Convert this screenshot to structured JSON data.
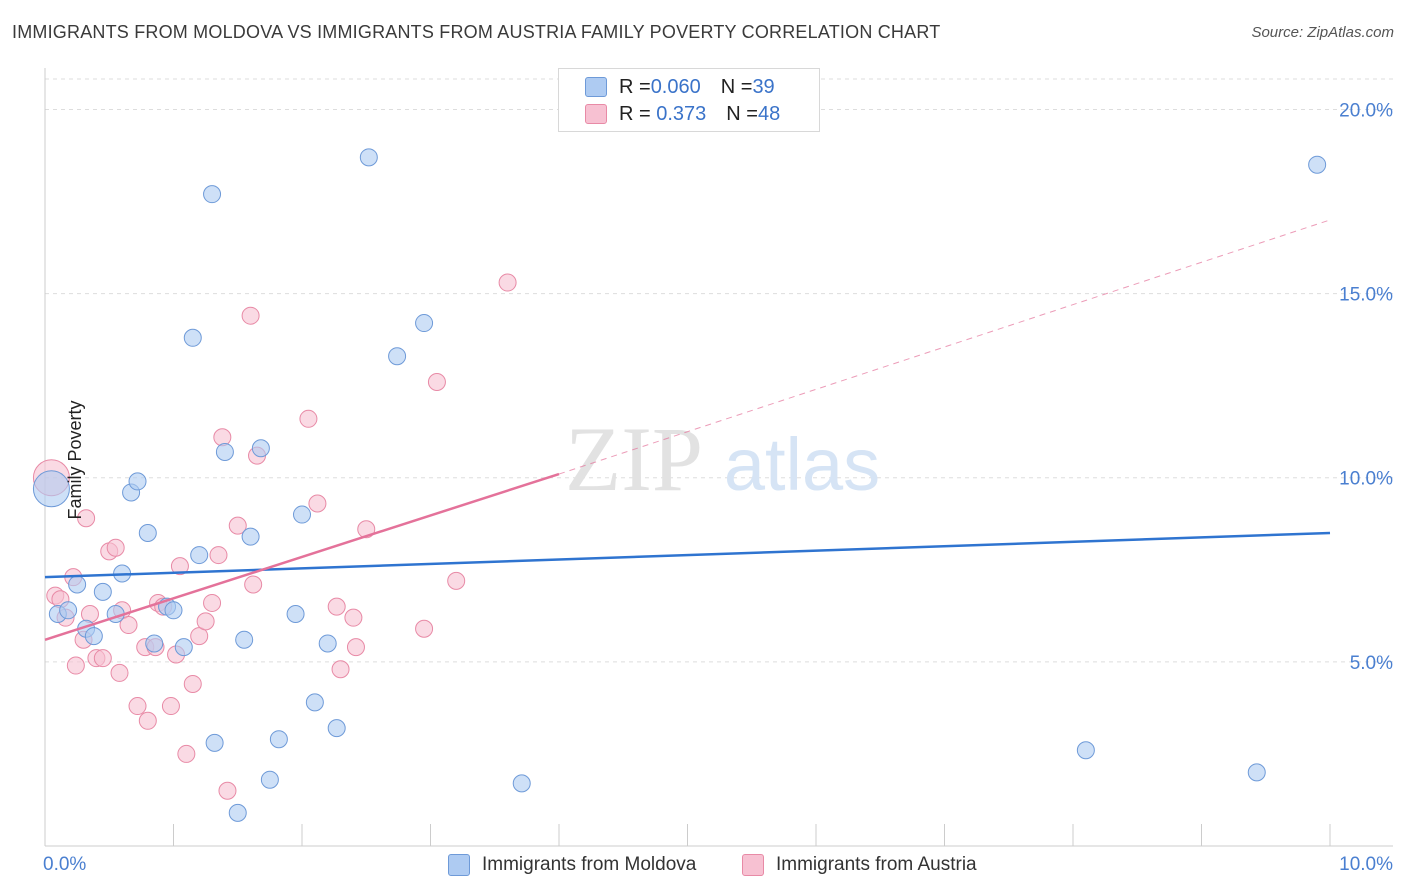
{
  "title": "IMMIGRANTS FROM MOLDOVA VS IMMIGRANTS FROM AUSTRIA FAMILY POVERTY CORRELATION CHART",
  "source": "Source: ZipAtlas.com",
  "watermark": {
    "zip": "ZIP",
    "atlas": "atlas"
  },
  "legend": {
    "rows": [
      {
        "r_label": "R = ",
        "r_value": "0.060",
        "n_label": "N = ",
        "n_value": "39"
      },
      {
        "r_label": "R = ",
        "r_value": " 0.373",
        "n_label": "N = ",
        "n_value": "48"
      }
    ]
  },
  "colors": {
    "moldova_fill": "#aecbf2",
    "moldova_stroke": "#6e9ad8",
    "moldova_line": "#2f74d0",
    "austria_fill": "#f7c1d2",
    "austria_stroke": "#e88aa6",
    "austria_line": "#e4729a",
    "grid": "#dddddd",
    "axis_text": "#4a7fd0"
  },
  "chart_data": {
    "type": "scatter",
    "title": "IMMIGRANTS FROM MOLDOVA VS IMMIGRANTS FROM AUSTRIA FAMILY POVERTY CORRELATION CHART",
    "xlabel": "",
    "ylabel": "Family Poverty",
    "xlim": [
      0,
      10
    ],
    "ylim": [
      0,
      20.8
    ],
    "x_tick_labels": [
      "0.0%",
      "10.0%"
    ],
    "y_ticks": [
      5,
      10,
      15,
      20
    ],
    "y_tick_labels": [
      "5.0%",
      "10.0%",
      "15.0%",
      "20.0%"
    ],
    "grid": true,
    "legend_position": "top-center",
    "series": [
      {
        "name": "Immigrants from Moldova",
        "R": 0.06,
        "N": 39,
        "trend": {
          "x0": 0,
          "y0": 7.3,
          "x1": 10,
          "y1": 8.5
        },
        "points": [
          {
            "x": 0.05,
            "y": 9.7,
            "big": true
          },
          {
            "x": 0.1,
            "y": 6.3
          },
          {
            "x": 0.18,
            "y": 6.4
          },
          {
            "x": 0.25,
            "y": 7.1
          },
          {
            "x": 0.32,
            "y": 5.9
          },
          {
            "x": 0.38,
            "y": 5.7
          },
          {
            "x": 0.45,
            "y": 6.9
          },
          {
            "x": 0.55,
            "y": 6.3
          },
          {
            "x": 0.6,
            "y": 7.4
          },
          {
            "x": 0.67,
            "y": 9.6
          },
          {
            "x": 0.72,
            "y": 9.9
          },
          {
            "x": 0.8,
            "y": 8.5
          },
          {
            "x": 0.85,
            "y": 5.5
          },
          {
            "x": 0.95,
            "y": 6.5
          },
          {
            "x": 1.0,
            "y": 6.4
          },
          {
            "x": 1.08,
            "y": 5.4
          },
          {
            "x": 1.15,
            "y": 13.8
          },
          {
            "x": 1.2,
            "y": 7.9
          },
          {
            "x": 1.3,
            "y": 17.7
          },
          {
            "x": 1.32,
            "y": 2.8
          },
          {
            "x": 1.4,
            "y": 10.7
          },
          {
            "x": 1.5,
            "y": 0.9
          },
          {
            "x": 1.55,
            "y": 5.6
          },
          {
            "x": 1.6,
            "y": 8.4
          },
          {
            "x": 1.68,
            "y": 10.8
          },
          {
            "x": 1.75,
            "y": 1.8
          },
          {
            "x": 1.82,
            "y": 2.9
          },
          {
            "x": 1.95,
            "y": 6.3
          },
          {
            "x": 2.0,
            "y": 9.0
          },
          {
            "x": 2.1,
            "y": 3.9
          },
          {
            "x": 2.2,
            "y": 5.5
          },
          {
            "x": 2.27,
            "y": 3.2
          },
          {
            "x": 2.52,
            "y": 18.7
          },
          {
            "x": 2.74,
            "y": 13.3
          },
          {
            "x": 2.95,
            "y": 14.2
          },
          {
            "x": 3.71,
            "y": 1.7
          },
          {
            "x": 8.1,
            "y": 2.6
          },
          {
            "x": 9.43,
            "y": 2.0
          },
          {
            "x": 9.9,
            "y": 18.5
          }
        ]
      },
      {
        "name": "Immigrants from Austria",
        "R": 0.373,
        "N": 48,
        "trend_solid": {
          "x0": 0,
          "y0": 5.6,
          "x1": 4.0,
          "y1": 10.1
        },
        "trend_dashed": {
          "x0": 4.0,
          "y0": 10.1,
          "x1": 10.0,
          "y1": 17.0
        },
        "points": [
          {
            "x": 0.05,
            "y": 10.0,
            "big": true
          },
          {
            "x": 0.08,
            "y": 6.8
          },
          {
            "x": 0.12,
            "y": 6.7
          },
          {
            "x": 0.16,
            "y": 6.2
          },
          {
            "x": 0.22,
            "y": 7.3
          },
          {
            "x": 0.24,
            "y": 4.9
          },
          {
            "x": 0.3,
            "y": 5.6
          },
          {
            "x": 0.32,
            "y": 8.9
          },
          {
            "x": 0.35,
            "y": 6.3
          },
          {
            "x": 0.4,
            "y": 5.1
          },
          {
            "x": 0.45,
            "y": 5.1
          },
          {
            "x": 0.5,
            "y": 8.0
          },
          {
            "x": 0.55,
            "y": 8.1
          },
          {
            "x": 0.58,
            "y": 4.7
          },
          {
            "x": 0.6,
            "y": 6.4
          },
          {
            "x": 0.65,
            "y": 6.0
          },
          {
            "x": 0.72,
            "y": 3.8
          },
          {
            "x": 0.78,
            "y": 5.4
          },
          {
            "x": 0.8,
            "y": 3.4
          },
          {
            "x": 0.86,
            "y": 5.4
          },
          {
            "x": 0.88,
            "y": 6.6
          },
          {
            "x": 0.92,
            "y": 6.5
          },
          {
            "x": 0.98,
            "y": 3.8
          },
          {
            "x": 1.02,
            "y": 5.2
          },
          {
            "x": 1.05,
            "y": 7.6
          },
          {
            "x": 1.1,
            "y": 2.5
          },
          {
            "x": 1.15,
            "y": 4.4
          },
          {
            "x": 1.2,
            "y": 5.7
          },
          {
            "x": 1.25,
            "y": 6.1
          },
          {
            "x": 1.3,
            "y": 6.6
          },
          {
            "x": 1.35,
            "y": 7.9
          },
          {
            "x": 1.38,
            "y": 11.1
          },
          {
            "x": 1.42,
            "y": 1.5
          },
          {
            "x": 1.5,
            "y": 8.7
          },
          {
            "x": 1.6,
            "y": 14.4
          },
          {
            "x": 1.62,
            "y": 7.1
          },
          {
            "x": 1.65,
            "y": 10.6
          },
          {
            "x": 2.05,
            "y": 11.6
          },
          {
            "x": 2.12,
            "y": 9.3
          },
          {
            "x": 2.27,
            "y": 6.5
          },
          {
            "x": 2.3,
            "y": 4.8
          },
          {
            "x": 2.4,
            "y": 6.2
          },
          {
            "x": 2.42,
            "y": 5.4
          },
          {
            "x": 2.5,
            "y": 8.6
          },
          {
            "x": 2.95,
            "y": 5.9
          },
          {
            "x": 3.05,
            "y": 12.6
          },
          {
            "x": 3.2,
            "y": 7.2
          },
          {
            "x": 3.6,
            "y": 15.3
          }
        ]
      }
    ]
  },
  "bottom_legend": {
    "moldova_label": "Immigrants from Moldova",
    "austria_label": "Immigrants from Austria"
  }
}
